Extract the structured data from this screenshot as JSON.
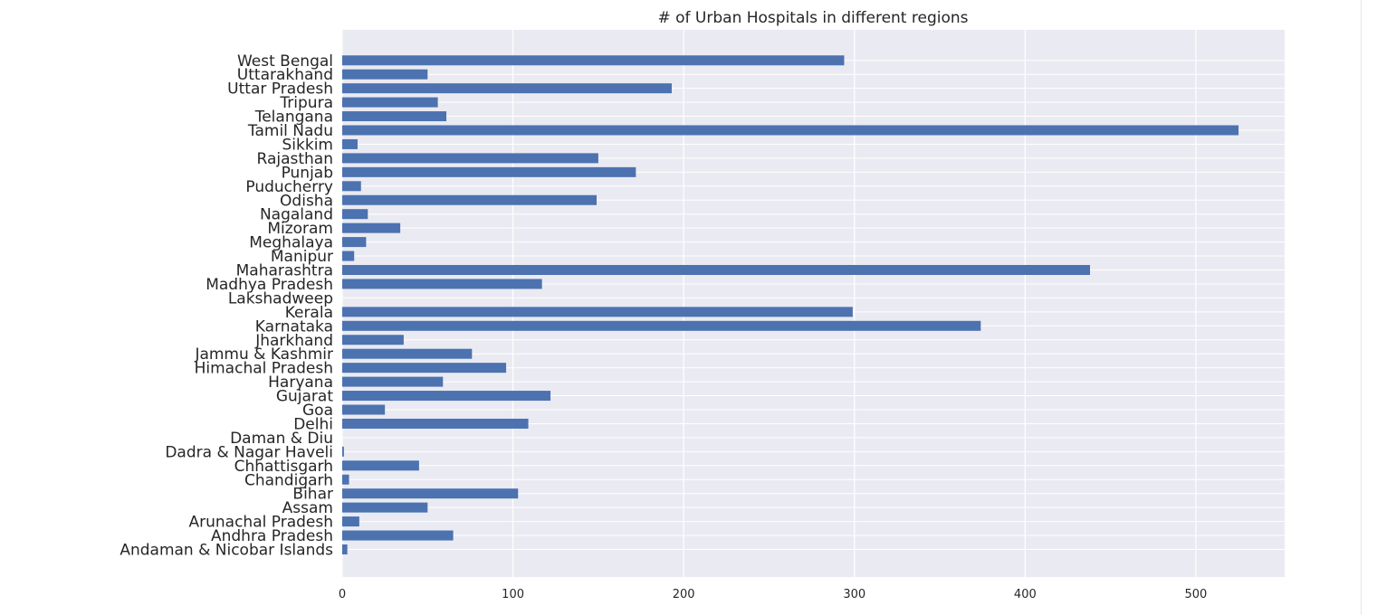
{
  "chart_data": {
    "type": "bar",
    "orientation": "horizontal",
    "title": "# of Urban Hospitals in different regions",
    "xlabel": "",
    "ylabel": "",
    "xlim": [
      0,
      552
    ],
    "xticks": [
      0,
      100,
      200,
      300,
      400,
      500
    ],
    "grid": true,
    "bar_color": "#4c72b0",
    "background_color": "#eaeaf2",
    "categories": [
      "Andaman & Nicobar Islands",
      "Andhra Pradesh",
      "Arunachal Pradesh",
      "Assam",
      "Bihar",
      "Chandigarh",
      "Chhattisgarh",
      "Dadra & Nagar Haveli",
      "Daman & Diu",
      "Delhi",
      "Goa",
      "Gujarat",
      "Haryana",
      "Himachal Pradesh",
      "Jammu & Kashmir",
      "Jharkhand",
      "Karnataka",
      "Kerala",
      "Lakshadweep",
      "Madhya Pradesh",
      "Maharashtra",
      "Manipur",
      "Meghalaya",
      "Mizoram",
      "Nagaland",
      "Odisha",
      "Puducherry",
      "Punjab",
      "Rajasthan",
      "Sikkim",
      "Tamil Nadu",
      "Telangana",
      "Tripura",
      "Uttar Pradesh",
      "Uttarakhand",
      "West Bengal"
    ],
    "values": [
      3,
      65,
      10,
      50,
      103,
      4,
      45,
      1,
      0,
      109,
      25,
      122,
      59,
      96,
      76,
      36,
      374,
      299,
      0,
      117,
      438,
      7,
      14,
      34,
      15,
      149,
      11,
      172,
      150,
      9,
      525,
      61,
      56,
      193,
      50,
      294
    ]
  }
}
